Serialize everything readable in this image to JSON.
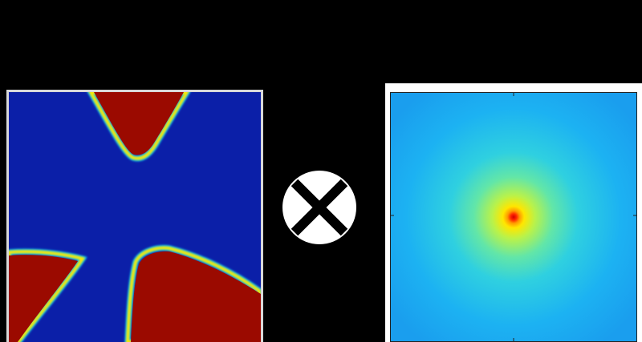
{
  "figure": {
    "left_panel_icon": "phase-field-map",
    "operator_icon": "convolution-circled-x-icon",
    "right_panel_icon": "gaussian-kernel-map",
    "colors": {
      "background": "#000000",
      "phase_low": "#0b1fa8",
      "phase_high": "#9b0a00",
      "kernel_outer": "#1aa3f0",
      "kernel_peak": "#d40000",
      "operator_fill": "#ffffff",
      "operator_cross": "#000000"
    }
  }
}
